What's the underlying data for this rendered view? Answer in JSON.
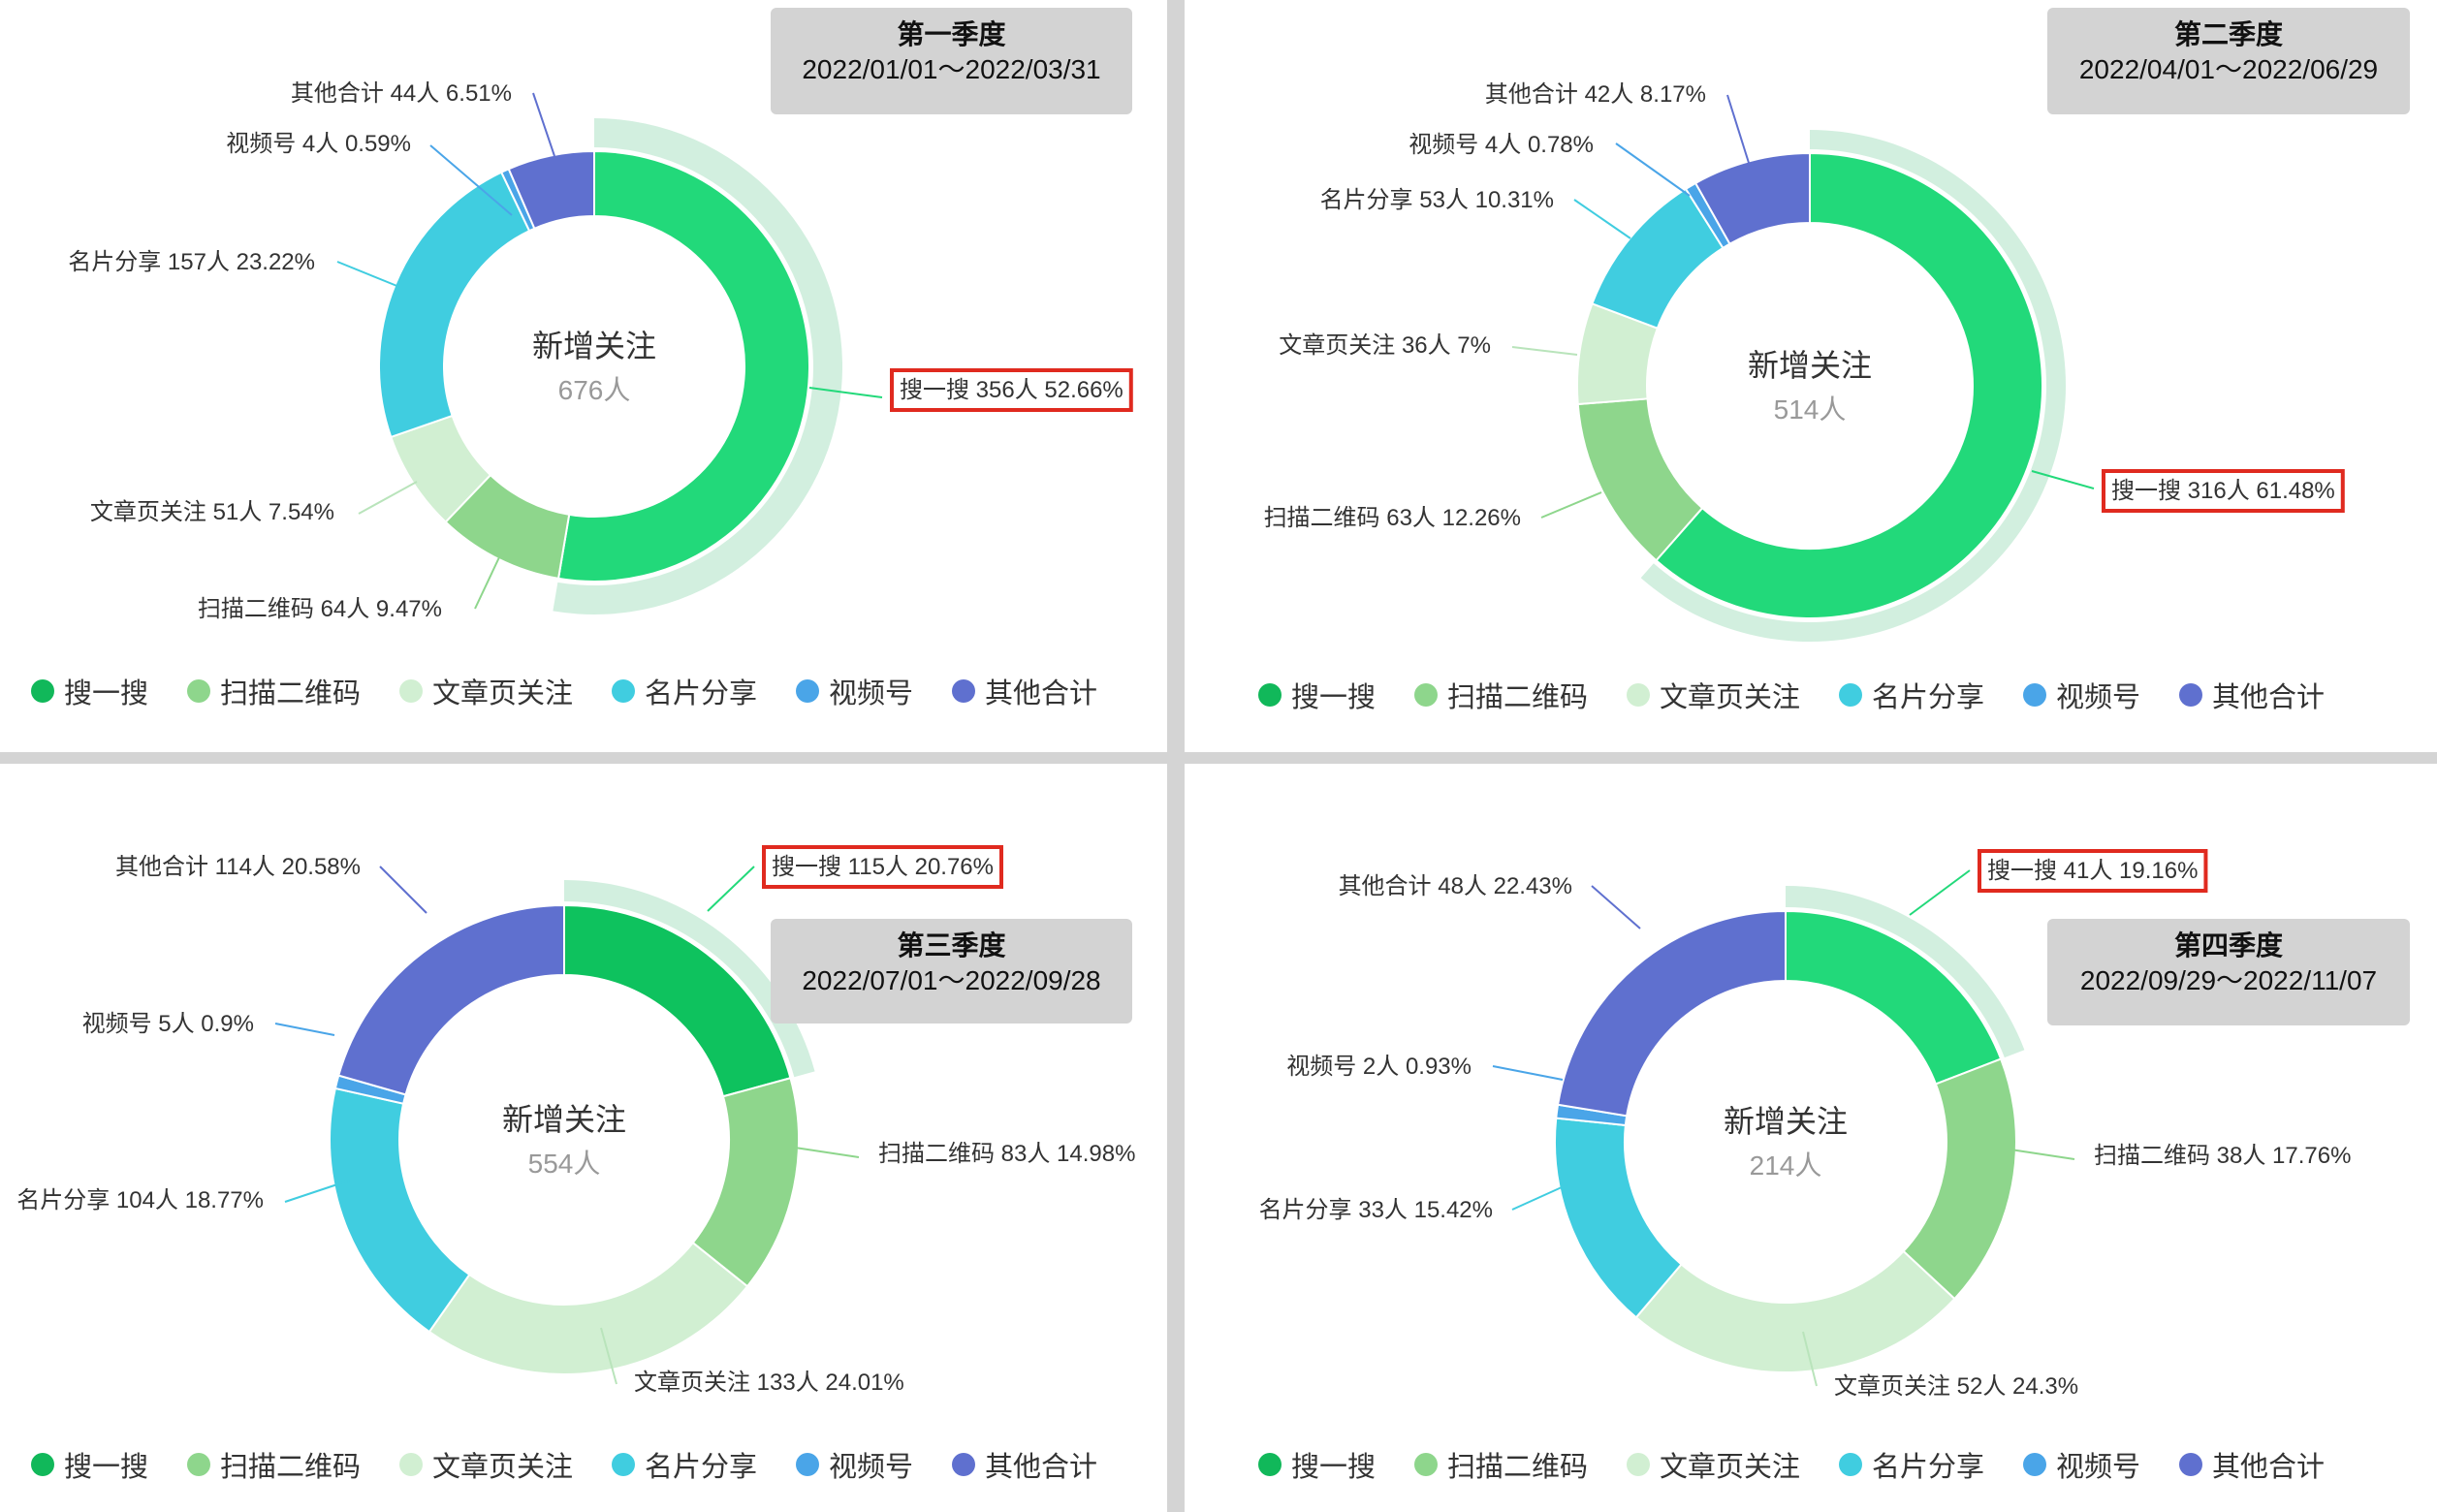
{
  "legend": [
    "搜一搜",
    "扫描二维码",
    "文章页关注",
    "名片分享",
    "视频号",
    "其他合计"
  ],
  "colors": {
    "搜一搜": "#22d97a",
    "搜一搜_q3": "#0ec25e",
    "扫描二维码": "#8ed68c",
    "文章页关注": "#d1efd2",
    "名片分享": "#40cde0",
    "视频号": "#4aa5e8",
    "其他合计": "#5f70cf",
    "legend_搜一搜": "#11b85a",
    "highlight_ring": "#d2efdf",
    "callout_border": "#e02a1f",
    "quarter_box": "#d3d3d3"
  },
  "chart_data": [
    {
      "type": "pie",
      "quarter": "第一季度",
      "range": "2022/01/01～2022/03/31",
      "center_title": "新增关注",
      "center_value": "676人",
      "categories": [
        "搜一搜",
        "扫描二维码",
        "文章页关注",
        "名片分享",
        "视频号",
        "其他合计"
      ],
      "values": [
        356,
        64,
        51,
        157,
        4,
        44
      ],
      "percents": [
        "52.66%",
        "9.47%",
        "7.54%",
        "23.22%",
        "0.59%",
        "6.51%"
      ],
      "labels": [
        "搜一搜 356人 52.66%",
        "扫描二维码 64人 9.47%",
        "文章页关注 51人 7.54%",
        "名片分享 157人 23.22%",
        "视频号 4人 0.59%",
        "其他合计 44人 6.51%"
      ]
    },
    {
      "type": "pie",
      "quarter": "第二季度",
      "range": "2022/04/01～2022/06/29",
      "center_title": "新增关注",
      "center_value": "514人",
      "categories": [
        "搜一搜",
        "扫描二维码",
        "文章页关注",
        "名片分享",
        "视频号",
        "其他合计"
      ],
      "values": [
        316,
        63,
        36,
        53,
        4,
        42
      ],
      "percents": [
        "61.48%",
        "12.26%",
        "7%",
        "10.31%",
        "0.78%",
        "8.17%"
      ],
      "labels": [
        "搜一搜 316人 61.48%",
        "扫描二维码 63人 12.26%",
        "文章页关注 36人 7%",
        "名片分享 53人 10.31%",
        "视频号 4人 0.78%",
        "其他合计 42人 8.17%"
      ]
    },
    {
      "type": "pie",
      "quarter": "第三季度",
      "range": "2022/07/01～2022/09/28",
      "center_title": "新增关注",
      "center_value": "554人",
      "categories": [
        "搜一搜",
        "扫描二维码",
        "文章页关注",
        "名片分享",
        "视频号",
        "其他合计"
      ],
      "values": [
        115,
        83,
        133,
        104,
        5,
        114
      ],
      "percents": [
        "20.76%",
        "14.98%",
        "24.01%",
        "18.77%",
        "0.9%",
        "20.58%"
      ],
      "labels": [
        "搜一搜 115人 20.76%",
        "扫描二维码 83人 14.98%",
        "文章页关注 133人 24.01%",
        "名片分享 104人 18.77%",
        "视频号 5人 0.9%",
        "其他合计 114人 20.58%"
      ]
    },
    {
      "type": "pie",
      "quarter": "第四季度",
      "range": "2022/09/29～2022/11/07",
      "center_title": "新增关注",
      "center_value": "214人",
      "categories": [
        "搜一搜",
        "扫描二维码",
        "文章页关注",
        "名片分享",
        "视频号",
        "其他合计"
      ],
      "values": [
        41,
        38,
        52,
        33,
        2,
        48
      ],
      "percents": [
        "19.16%",
        "17.76%",
        "24.3%",
        "15.42%",
        "0.93%",
        "22.43%"
      ],
      "labels": [
        "搜一搜 41人 19.16%",
        "扫描二维码 38人 17.76%",
        "文章页关注 52人 24.3%",
        "名片分享 33人 15.42%",
        "视频号 2人 0.93%",
        "其他合计 48人 22.43%"
      ]
    }
  ]
}
